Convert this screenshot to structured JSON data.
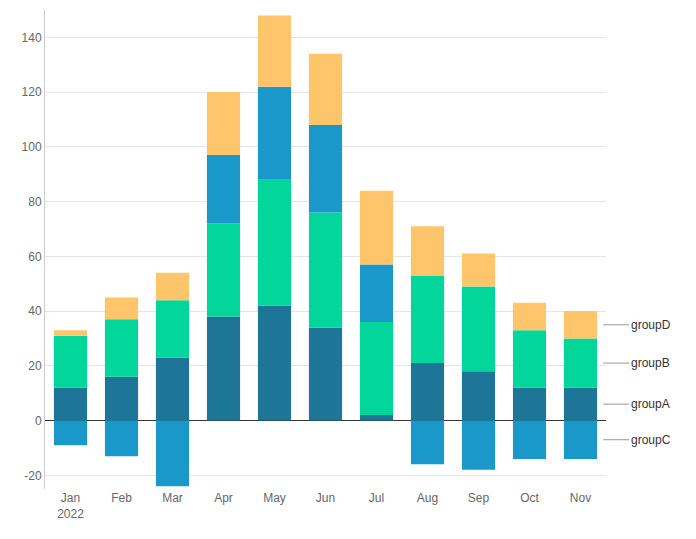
{
  "chart_data": {
    "type": "bar",
    "stacked": true,
    "grid": true,
    "legend": "right",
    "categories": [
      "Jan 2022",
      "Feb",
      "Mar",
      "Apr",
      "May",
      "Jun",
      "Jul",
      "Aug",
      "Sep",
      "Oct",
      "Nov"
    ],
    "series": [
      {
        "name": "groupA",
        "color": "#1d7698",
        "values": [
          12,
          16,
          23,
          38,
          42,
          34,
          2,
          21,
          18,
          12,
          12
        ]
      },
      {
        "name": "groupB",
        "color": "#03d69a",
        "values": [
          19,
          21,
          21,
          34,
          46,
          42,
          34,
          32,
          31,
          21,
          18
        ]
      },
      {
        "name": "groupC",
        "color": "#1a98c9",
        "values": [
          -9,
          -13,
          -24,
          25,
          34,
          32,
          21,
          -16,
          -18,
          -14,
          -14
        ]
      },
      {
        "name": "groupD",
        "color": "#ffc56b",
        "values": [
          2,
          8,
          10,
          23,
          26,
          26,
          27,
          18,
          12,
          10,
          10
        ]
      }
    ],
    "ylim": [
      -25,
      150
    ],
    "yticks": [
      -20,
      0,
      20,
      40,
      60,
      80,
      100,
      120,
      140
    ]
  }
}
